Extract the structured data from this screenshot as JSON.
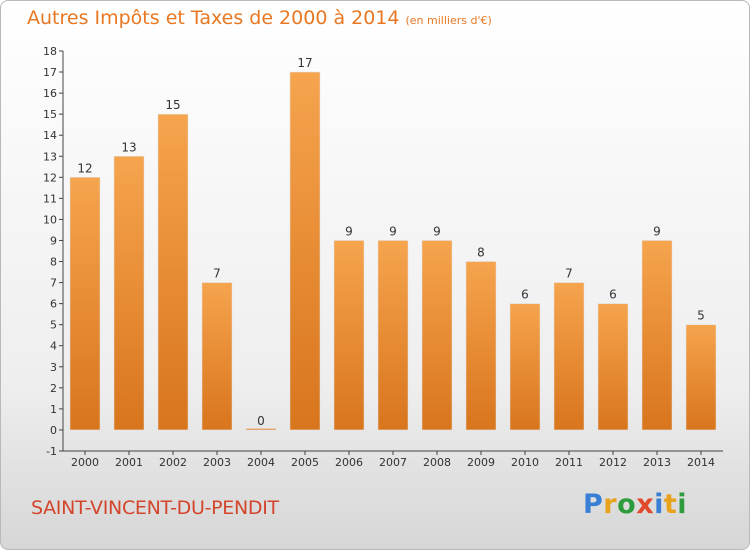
{
  "header": {
    "title": "Autres Impôts et Taxes de 2000 à 2014",
    "unit": "(en milliers d'€)"
  },
  "footer": {
    "place": "SAINT-VINCENT-DU-PENDIT",
    "logo_text": "Proxiti"
  },
  "colors": {
    "title": "#e87722",
    "place": "#d2452b",
    "bar_light": "#f6a44e",
    "bar_dark": "#d8751d"
  },
  "chart_data": {
    "type": "bar",
    "title": "Autres Impôts et Taxes de 2000 à 2014",
    "subtitle": "(en milliers d'€)",
    "xlabel": "",
    "ylabel": "",
    "categories": [
      "2000",
      "2001",
      "2002",
      "2003",
      "2004",
      "2005",
      "2006",
      "2007",
      "2008",
      "2009",
      "2010",
      "2011",
      "2012",
      "2013",
      "2014"
    ],
    "values": [
      12,
      13,
      15,
      7,
      0,
      17,
      9,
      9,
      9,
      8,
      6,
      7,
      6,
      9,
      5
    ],
    "ylim": [
      -1,
      18
    ],
    "y_ticks": [
      "-1",
      "0",
      "1",
      "2",
      "3",
      "4",
      "5",
      "6",
      "7",
      "8",
      "9",
      "10",
      "11",
      "12",
      "13",
      "14",
      "15",
      "16",
      "17",
      "18"
    ],
    "grid": false,
    "data_labels": true
  }
}
